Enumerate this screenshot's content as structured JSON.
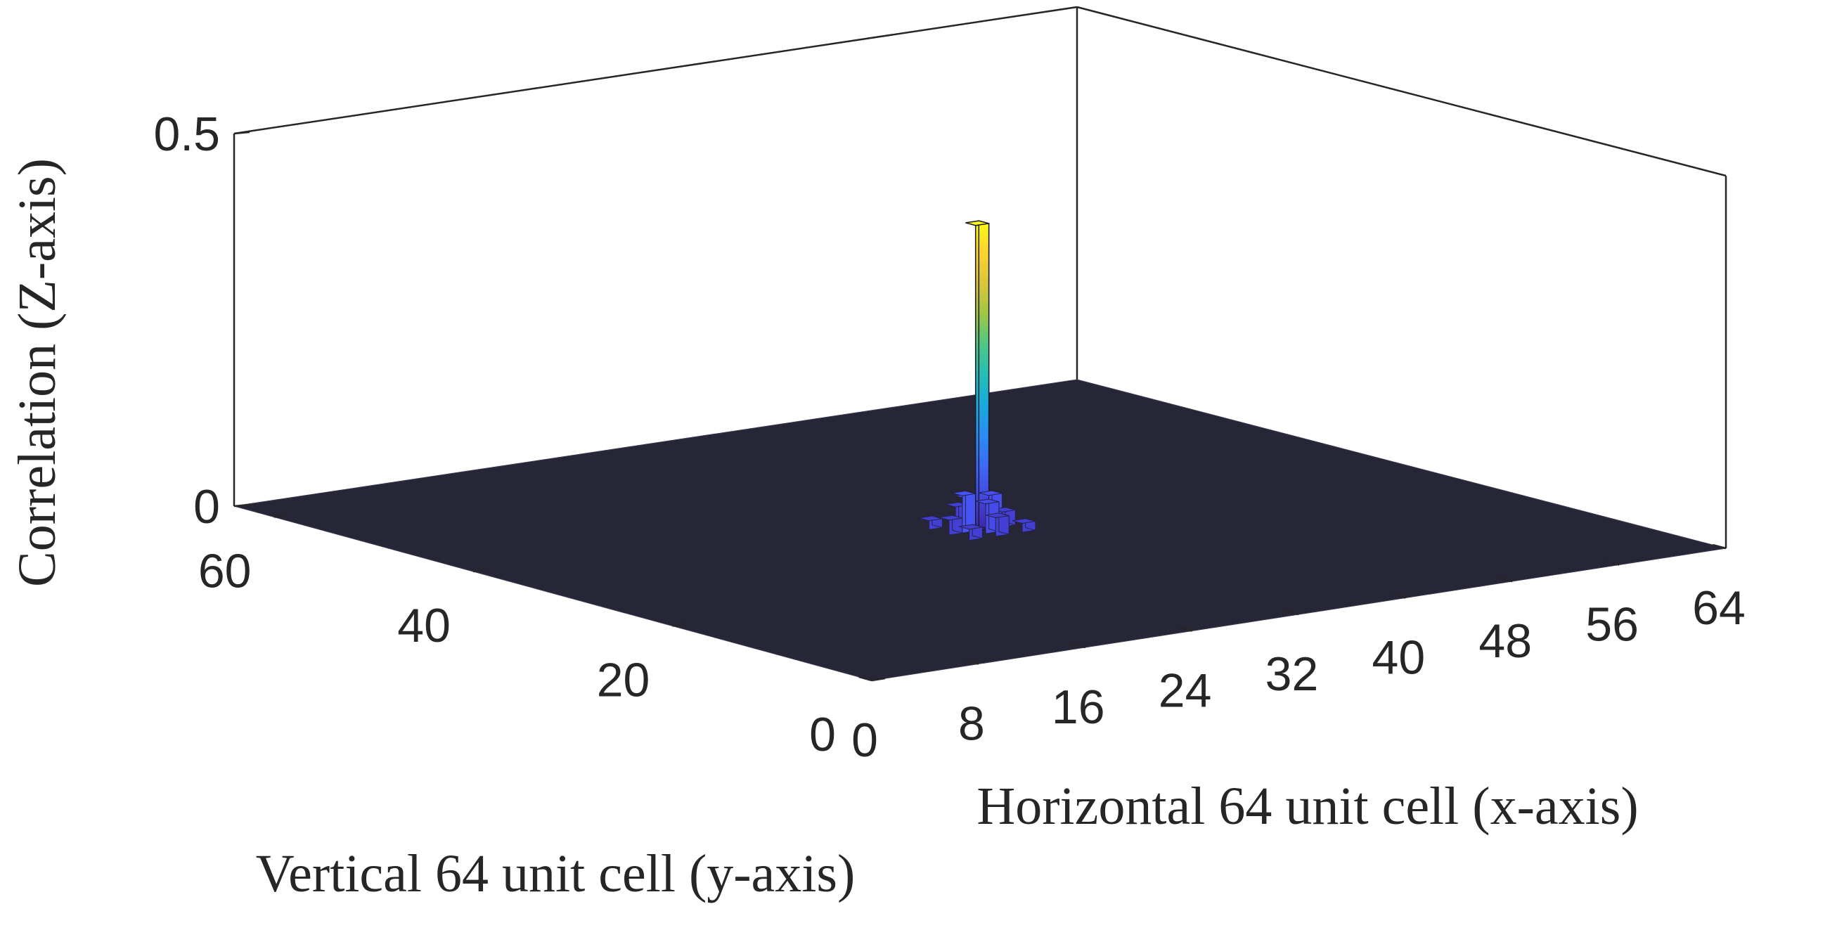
{
  "chart_data": {
    "type": "surface3d",
    "title": "",
    "xlabel": "Horizontal 64 unit cell (x-axis)",
    "ylabel": "Vertical 64 unit cell (y-axis)",
    "zlabel": "Correlation (Z-axis)",
    "xlim": [
      0,
      64
    ],
    "ylim": [
      0,
      64
    ],
    "zlim": [
      0,
      0.5
    ],
    "x_ticks": [
      "0",
      "8",
      "16",
      "24",
      "32",
      "40",
      "48",
      "56",
      "64"
    ],
    "y_ticks": [
      "0",
      "20",
      "40",
      "60"
    ],
    "z_ticks": [
      "0",
      "0.5"
    ],
    "grid": false,
    "colormap": "parula",
    "floor_color": "#262637",
    "floor_value": 0,
    "peak": {
      "x": 32,
      "y": 32,
      "z": 0.41
    },
    "side_lobes": [
      {
        "x": 30,
        "y": 32,
        "z": 0.02
      },
      {
        "x": 34,
        "y": 32,
        "z": 0.02
      },
      {
        "x": 32,
        "y": 30,
        "z": 0.025
      },
      {
        "x": 32,
        "y": 34,
        "z": 0.025
      },
      {
        "x": 31,
        "y": 32,
        "z": 0.05
      },
      {
        "x": 33,
        "y": 32,
        "z": 0.045
      },
      {
        "x": 32,
        "y": 31,
        "z": 0.04
      },
      {
        "x": 32,
        "y": 33,
        "z": 0.04
      },
      {
        "x": 30,
        "y": 30,
        "z": 0.015
      },
      {
        "x": 34,
        "y": 34,
        "z": 0.015
      },
      {
        "x": 30,
        "y": 34,
        "z": 0.012
      },
      {
        "x": 34,
        "y": 30,
        "z": 0.012
      }
    ]
  }
}
